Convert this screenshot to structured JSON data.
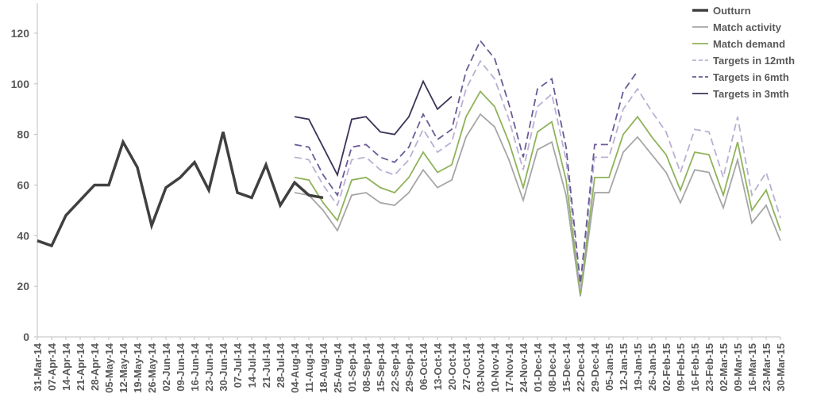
{
  "chart_data": {
    "type": "line",
    "title": "",
    "xlabel": "",
    "ylabel": "",
    "ylim": [
      0,
      130
    ],
    "yticks": [
      "0",
      "20",
      "40",
      "60",
      "80",
      "100",
      "120"
    ],
    "grid": false,
    "legend_position": "top-right",
    "categories": [
      "31-Mar-14",
      "07-Apr-14",
      "14-Apr-14",
      "21-Apr-14",
      "28-Apr-14",
      "05-May-14",
      "12-May-14",
      "19-May-14",
      "26-May-14",
      "02-Jun-14",
      "09-Jun-14",
      "16-Jun-14",
      "23-Jun-14",
      "30-Jun-14",
      "07-Jul-14",
      "14-Jul-14",
      "21-Jul-14",
      "28-Jul-14",
      "04-Aug-14",
      "11-Aug-14",
      "18-Aug-14",
      "25-Aug-14",
      "01-Sep-14",
      "08-Sep-14",
      "15-Sep-14",
      "22-Sep-14",
      "29-Sep-14",
      "06-Oct-14",
      "13-Oct-14",
      "20-Oct-14",
      "27-Oct-14",
      "03-Nov-14",
      "10-Nov-14",
      "17-Nov-14",
      "24-Nov-14",
      "01-Dec-14",
      "08-Dec-14",
      "15-Dec-14",
      "22-Dec-14",
      "29-Dec-14",
      "05-Jan-15",
      "12-Jan-15",
      "19-Jan-15",
      "26-Jan-15",
      "02-Feb-15",
      "09-Feb-15",
      "16-Feb-15",
      "23-Feb-15",
      "02-Mar-15",
      "09-Mar-15",
      "16-Mar-15",
      "23-Mar-15",
      "30-Mar-15"
    ],
    "series": [
      {
        "name": "Outturn",
        "color": "#404040",
        "style": "solid-thick",
        "values": [
          38,
          36,
          48,
          54,
          60,
          60,
          77,
          67,
          44,
          59,
          63,
          69,
          58,
          81,
          57,
          55,
          68,
          52,
          61,
          56,
          55,
          null,
          null,
          null,
          null,
          null,
          null,
          null,
          null,
          null,
          null,
          null,
          null,
          null,
          null,
          null,
          null,
          null,
          null,
          null,
          null,
          null,
          null,
          null,
          null,
          null,
          null,
          null,
          null,
          null,
          null,
          null,
          null
        ]
      },
      {
        "name": "Match activity",
        "color": "#a6a6a6",
        "style": "solid",
        "values": [
          null,
          null,
          null,
          null,
          null,
          null,
          null,
          null,
          null,
          null,
          null,
          null,
          null,
          null,
          null,
          null,
          null,
          null,
          57,
          56,
          50,
          42,
          56,
          57,
          53,
          52,
          57,
          66,
          59,
          62,
          79,
          88,
          83,
          70,
          54,
          74,
          77,
          56,
          16,
          57,
          57,
          73,
          79,
          72,
          65,
          53,
          66,
          65,
          51,
          70,
          45,
          52,
          38
        ]
      },
      {
        "name": "Match demand",
        "color": "#8fb35a",
        "style": "solid",
        "values": [
          null,
          null,
          null,
          null,
          null,
          null,
          null,
          null,
          null,
          null,
          null,
          null,
          null,
          null,
          null,
          null,
          null,
          null,
          63,
          62,
          53,
          46,
          62,
          63,
          59,
          57,
          63,
          73,
          65,
          68,
          87,
          97,
          91,
          77,
          59,
          81,
          85,
          62,
          17,
          63,
          63,
          80,
          87,
          79,
          72,
          58,
          73,
          72,
          56,
          77,
          50,
          58,
          42
        ]
      },
      {
        "name": "Targets in 12mth",
        "color": "#b9b0d4",
        "style": "dashed",
        "values": [
          null,
          null,
          null,
          null,
          null,
          null,
          null,
          null,
          null,
          null,
          null,
          null,
          null,
          null,
          null,
          null,
          null,
          null,
          71,
          70,
          60,
          52,
          70,
          71,
          66,
          64,
          70,
          82,
          73,
          77,
          98,
          109,
          102,
          86,
          66,
          91,
          96,
          70,
          19,
          71,
          71,
          90,
          98,
          89,
          81,
          65,
          82,
          81,
          63,
          87,
          56,
          65,
          47
        ]
      },
      {
        "name": "Targets in 6mth",
        "color": "#6b5a96",
        "style": "dashed",
        "values": [
          null,
          null,
          null,
          null,
          null,
          null,
          null,
          null,
          null,
          null,
          null,
          null,
          null,
          null,
          null,
          null,
          null,
          null,
          76,
          75,
          64,
          56,
          75,
          76,
          71,
          69,
          75,
          88,
          78,
          82,
          105,
          117,
          110,
          92,
          71,
          98,
          102,
          75,
          21,
          76,
          76,
          97,
          105,
          null,
          null,
          null,
          null,
          null,
          null,
          null,
          null,
          null,
          null
        ]
      },
      {
        "name": "Targets in 3mth",
        "color": "#3d3358",
        "style": "solid",
        "values": [
          null,
          null,
          null,
          null,
          null,
          null,
          null,
          null,
          null,
          null,
          null,
          null,
          null,
          null,
          null,
          null,
          null,
          null,
          87,
          86,
          75,
          64,
          86,
          87,
          81,
          80,
          87,
          101,
          90,
          95,
          null,
          null,
          null,
          null,
          null,
          null,
          null,
          null,
          null,
          null,
          null,
          null,
          null,
          null,
          null,
          null,
          null,
          null,
          null,
          null,
          null,
          null,
          null
        ]
      }
    ]
  }
}
